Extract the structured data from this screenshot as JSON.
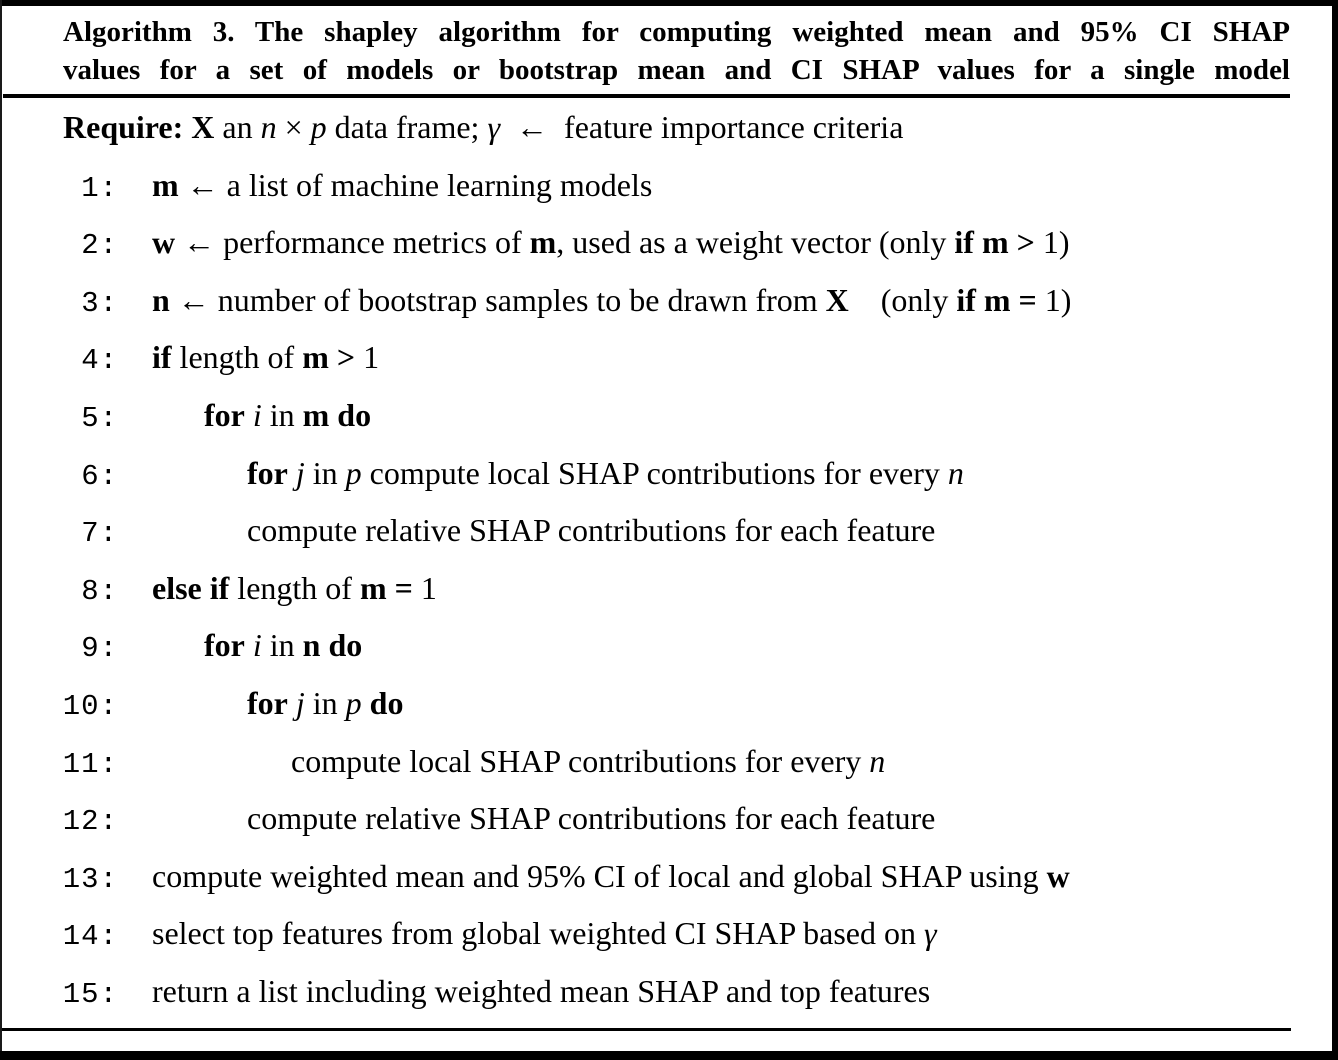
{
  "title": {
    "line1": "Algorithm 3. The shapley algorithm for computing weighted mean and 95% CI SHAP",
    "line2": "values for a set of models or bootstrap mean and CI SHAP values for a single model"
  },
  "colors": {
    "text": "#000000",
    "background": "#ffffff",
    "rule": "#000000"
  },
  "lines": [
    {
      "name": "require-line",
      "number": "",
      "indent": "r",
      "segments": [
        {
          "t": "Require: ",
          "b": 1
        },
        {
          "t": "X",
          "b": 1
        },
        {
          "t": " an "
        },
        {
          "t": "n",
          "i": 1
        },
        {
          "t": " × "
        },
        {
          "t": "p",
          "i": 1
        },
        {
          "t": " data frame; "
        },
        {
          "t": "γ",
          "i": 1
        },
        {
          "t": " ← feature importance criteria"
        }
      ]
    },
    {
      "name": "algo-line-1",
      "number": "1:",
      "indent": "0",
      "segments": [
        {
          "t": "m",
          "b": 1
        },
        {
          "t": " ← a list of machine learning models"
        }
      ]
    },
    {
      "name": "algo-line-2",
      "number": "2:",
      "indent": "0",
      "segments": [
        {
          "t": "w",
          "b": 1
        },
        {
          "t": " ← performance metrics of "
        },
        {
          "t": "m",
          "b": 1
        },
        {
          "t": ", used as a weight vector (only "
        },
        {
          "t": "if m >",
          "b": 1
        },
        {
          "t": " 1)"
        }
      ]
    },
    {
      "name": "algo-line-3",
      "number": "3:",
      "indent": "0",
      "segments": [
        {
          "t": "n",
          "b": 1
        },
        {
          "t": " ← number of bootstrap samples to be drawn from "
        },
        {
          "t": "X",
          "b": 1
        },
        {
          "t": " (only "
        },
        {
          "t": "if m =",
          "b": 1
        },
        {
          "t": " 1)"
        }
      ]
    },
    {
      "name": "algo-line-4",
      "number": "4:",
      "indent": "0",
      "segments": [
        {
          "t": "if",
          "b": 1
        },
        {
          "t": " length of "
        },
        {
          "t": "m",
          "b": 1
        },
        {
          "t": " "
        },
        {
          "t": ">",
          "b": 1
        },
        {
          "t": " 1"
        }
      ]
    },
    {
      "name": "algo-line-5",
      "number": "5:",
      "indent": "1",
      "segments": [
        {
          "t": "for",
          "b": 1
        },
        {
          "t": " "
        },
        {
          "t": "i",
          "i": 1
        },
        {
          "t": " in "
        },
        {
          "t": "m do",
          "b": 1
        }
      ]
    },
    {
      "name": "algo-line-6",
      "number": "6:",
      "indent": "2",
      "segments": [
        {
          "t": "for",
          "b": 1
        },
        {
          "t": " "
        },
        {
          "t": "j",
          "i": 1
        },
        {
          "t": " in "
        },
        {
          "t": "p",
          "i": 1
        },
        {
          "t": " compute local SHAP contributions for every "
        },
        {
          "t": "n",
          "i": 1
        }
      ]
    },
    {
      "name": "algo-line-7",
      "number": "7:",
      "indent": "2",
      "segments": [
        {
          "t": "compute relative SHAP contributions for each feature"
        }
      ]
    },
    {
      "name": "algo-line-8",
      "number": "8:",
      "indent": "0",
      "segments": [
        {
          "t": "else if",
          "b": 1
        },
        {
          "t": " length of "
        },
        {
          "t": "m",
          "b": 1
        },
        {
          "t": " "
        },
        {
          "t": "=",
          "b": 1
        },
        {
          "t": " 1"
        }
      ]
    },
    {
      "name": "algo-line-9",
      "number": "9:",
      "indent": "1",
      "segments": [
        {
          "t": "for",
          "b": 1
        },
        {
          "t": " "
        },
        {
          "t": "i",
          "i": 1
        },
        {
          "t": " in "
        },
        {
          "t": "n do",
          "b": 1
        }
      ]
    },
    {
      "name": "algo-line-10",
      "number": "10:",
      "indent": "2",
      "segments": [
        {
          "t": "for",
          "b": 1
        },
        {
          "t": " "
        },
        {
          "t": "j",
          "i": 1
        },
        {
          "t": " in "
        },
        {
          "t": "p",
          "i": 1
        },
        {
          "t": " "
        },
        {
          "t": "do",
          "b": 1
        }
      ]
    },
    {
      "name": "algo-line-11",
      "number": "11:",
      "indent": "3",
      "segments": [
        {
          "t": "compute local SHAP contributions for every "
        },
        {
          "t": "n",
          "i": 1
        }
      ]
    },
    {
      "name": "algo-line-12",
      "number": "12:",
      "indent": "2",
      "segments": [
        {
          "t": "compute relative SHAP contributions for each feature"
        }
      ]
    },
    {
      "name": "algo-line-13",
      "number": "13:",
      "indent": "0",
      "segments": [
        {
          "t": "compute weighted mean and 95% CI of local and global SHAP using "
        },
        {
          "t": "w",
          "b": 1
        }
      ]
    },
    {
      "name": "algo-line-14",
      "number": "14:",
      "indent": "0",
      "segments": [
        {
          "t": "select top features from global weighted CI SHAP based on "
        },
        {
          "t": "γ",
          "i": 1
        }
      ]
    },
    {
      "name": "algo-line-15",
      "number": "15:",
      "indent": "0",
      "segments": [
        {
          "t": "return a list including weighted mean SHAP and top features"
        }
      ]
    }
  ]
}
